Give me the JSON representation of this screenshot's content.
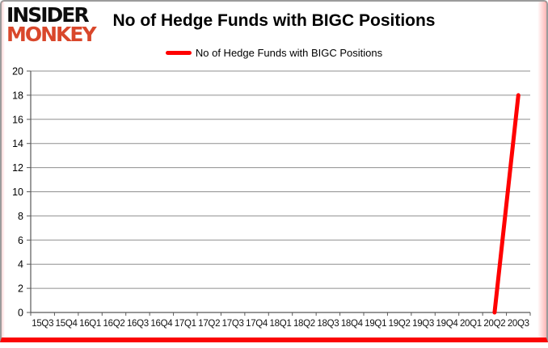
{
  "logo": {
    "line1": "INSIDER",
    "line2": "MONKEY"
  },
  "title": "No of Hedge Funds with BIGC Positions",
  "legend": {
    "label": "No of Hedge Funds with BIGC Positions"
  },
  "colors": {
    "accent_red": "#FF0000",
    "logo_red": "#D9472B",
    "border_gray": "#9B9B9B",
    "bottom_bar_red": "#FB0505",
    "gridline_gray": "#8F8F8F",
    "axis_gray": "#595959"
  },
  "chart_data": {
    "type": "line",
    "title": "No of Hedge Funds with BIGC Positions",
    "categories": [
      "15Q3",
      "15Q4",
      "16Q1",
      "16Q2",
      "16Q3",
      "16Q4",
      "17Q1",
      "17Q2",
      "17Q3",
      "17Q4",
      "18Q1",
      "18Q2",
      "18Q3",
      "18Q4",
      "19Q1",
      "19Q2",
      "19Q3",
      "19Q4",
      "20Q1",
      "20Q2",
      "20Q3"
    ],
    "series": [
      {
        "name": "No of Hedge Funds with BIGC Positions",
        "color": "#FF0000",
        "values": [
          null,
          null,
          null,
          null,
          null,
          null,
          null,
          null,
          null,
          null,
          null,
          null,
          null,
          null,
          null,
          null,
          null,
          null,
          null,
          0,
          18
        ]
      }
    ],
    "ylim": [
      0,
      20
    ],
    "ytick_step": 2,
    "yticks": [
      0,
      2,
      4,
      6,
      8,
      10,
      12,
      14,
      16,
      18,
      20
    ],
    "grid": true,
    "legend_position": "top"
  }
}
